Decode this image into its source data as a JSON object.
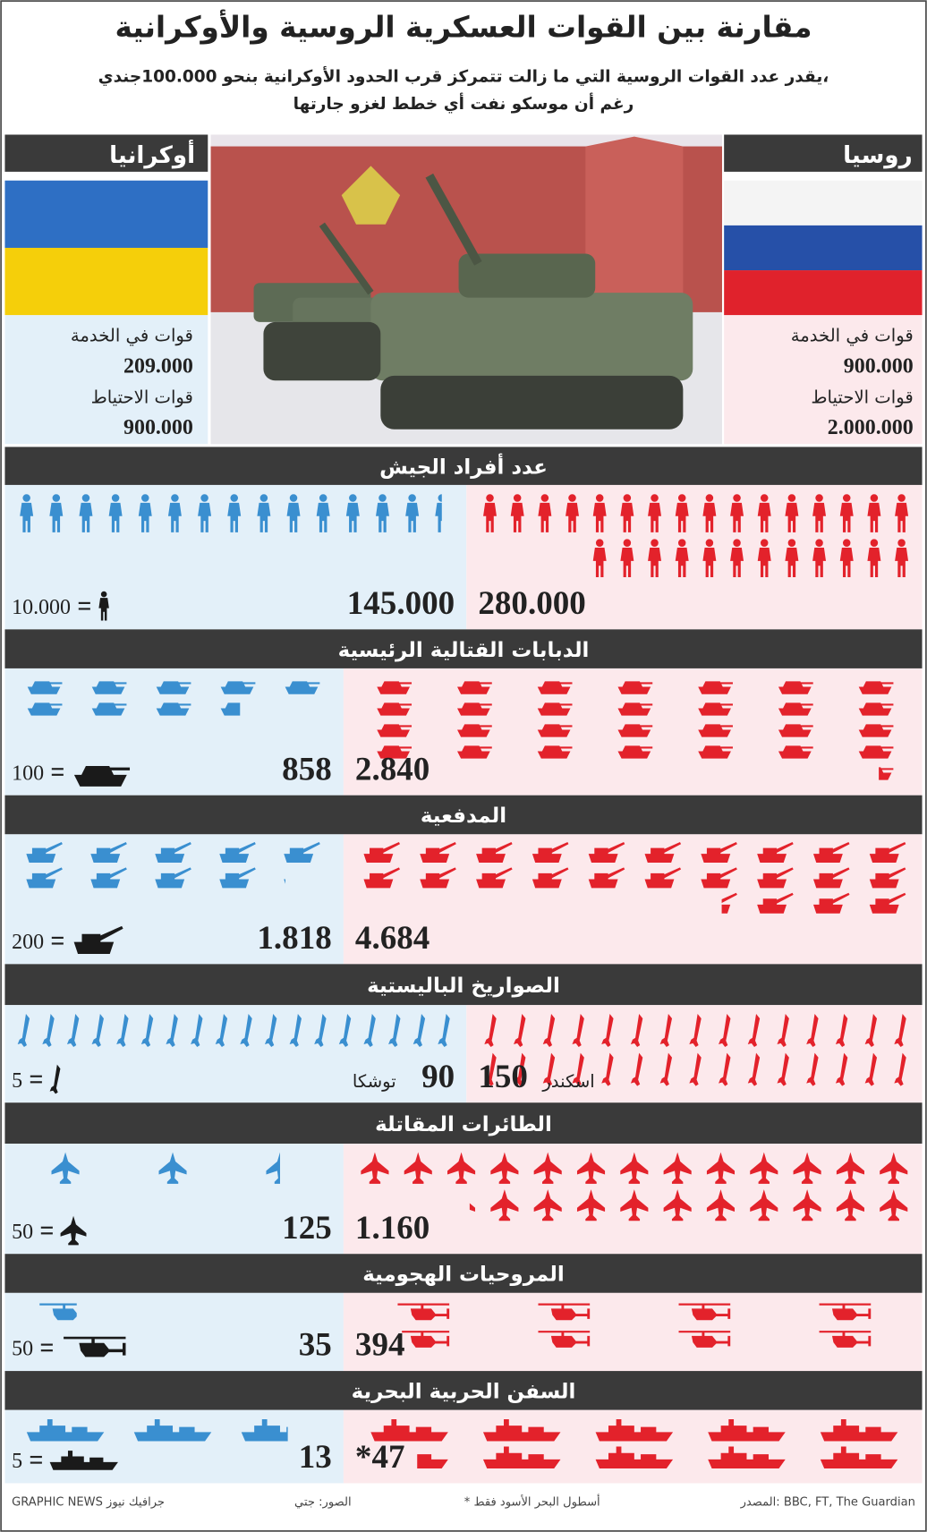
{
  "header": {
    "title": "مقارنة بين القوات العسكرية الروسية والأوكرانية",
    "subtitle": [
      "يقدر عدد القوات الروسية التي ما زالت تتمركز قرب الحدود الأوكرانية بنحو 100.000جندي،",
      "رغم أن موسكو نفت أي خطط لغزو جارتها"
    ]
  },
  "countries": {
    "russia": {
      "name": "روسيا",
      "stats": [
        {
          "label": "قوات في الخدمة",
          "value": "900.000"
        },
        {
          "label": "قوات الاحتياط",
          "value": "2.000.000"
        }
      ]
    },
    "ukraine": {
      "name": "أوكرانيا",
      "stats": [
        {
          "label": "قوات في الخدمة",
          "value": "209.000"
        },
        {
          "label": "قوات الاحتياط",
          "value": "900.000"
        }
      ]
    }
  },
  "sections": [
    {
      "title": "عدد أفراد الجيش",
      "unit": {
        "value": 10000,
        "label": "10.000"
      },
      "russia": {
        "value": 280000,
        "label": "280.000"
      },
      "ukraine": {
        "value": 145000,
        "label": "145.000"
      }
    },
    {
      "title": "الدبابات القتالية الرئيسية",
      "unit": 100,
      "russia": {
        "value": 2840,
        "label": "2.840"
      },
      "ukraine": 858
    },
    {
      "title": "المدفعية",
      "unit": 200,
      "russia": {
        "value": 4684,
        "label": "4.684"
      },
      "ukraine": {
        "value": 1818,
        "label": "1.818"
      }
    },
    {
      "title": "الصواريخ الباليستية",
      "unit": 5,
      "russia": 150,
      "russia_name": "اسكندر",
      "ukraine": 90,
      "ukraine_name": "توشكا"
    },
    {
      "title": "الطائرات المقاتلة",
      "unit": 50,
      "russia": {
        "value": 1160,
        "label": "1.160"
      },
      "ukraine": 125
    },
    {
      "title": "المروحيات الهجومية",
      "unit": 50,
      "russia": 394,
      "ukraine": 35
    },
    {
      "title": "السفن الحربية البحرية",
      "unit": 5,
      "russia": {
        "value": 47,
        "label": "*47"
      },
      "ukraine": 13
    }
  ],
  "footer": {
    "source": "المصدر: BBC, FT, The Guardian",
    "note": "* أسطول البحر الأسود فقط",
    "photos": "الصور: جتي",
    "credit": "GRAPHIC NEWS جرافيك نيوز"
  }
}
